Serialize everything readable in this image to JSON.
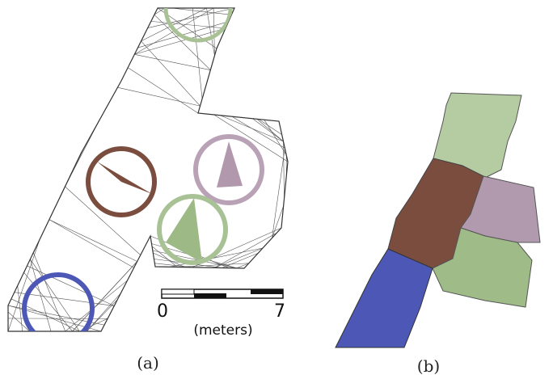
{
  "panel_a": {
    "label": "(a)",
    "scale_bar": {
      "start": "0",
      "end": "7",
      "unit": "(meters)"
    }
  },
  "panel_b": {
    "label": "(b)"
  }
}
